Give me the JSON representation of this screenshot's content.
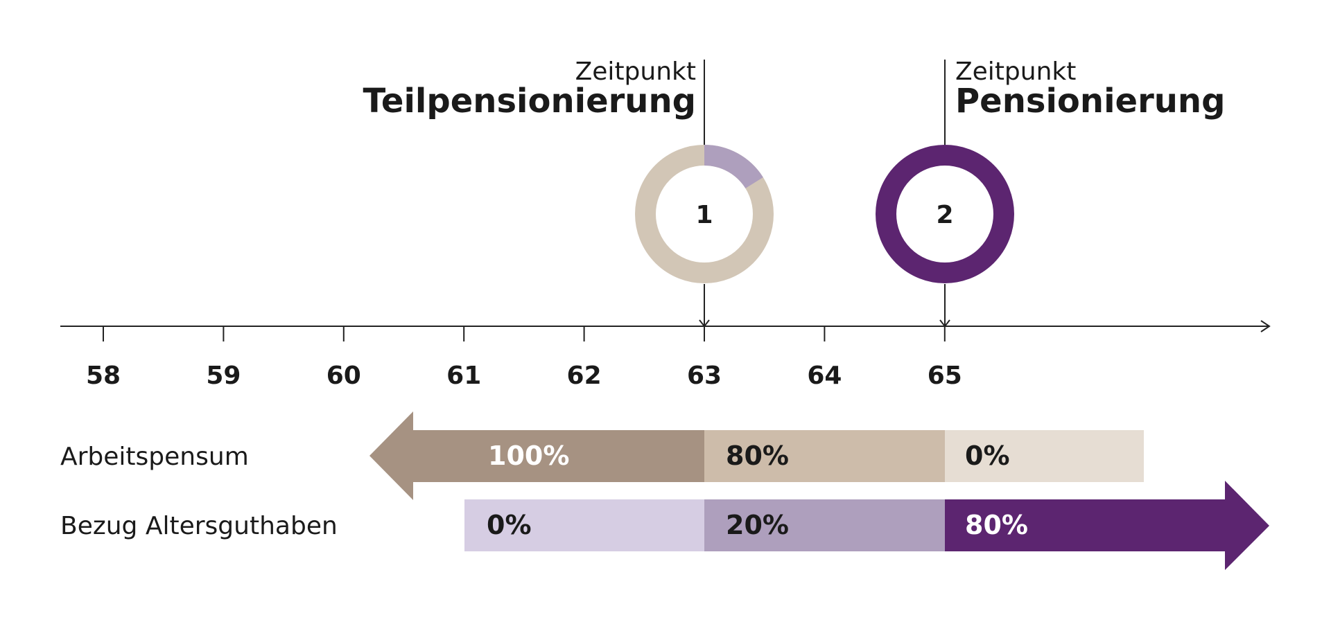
{
  "markers": [
    {
      "caption": "Zeitpunkt",
      "title": "Teilpensionierung",
      "number": "1"
    },
    {
      "caption": "Zeitpunkt",
      "title": "Pensionierung",
      "number": "2"
    }
  ],
  "axis": {
    "ticks": [
      "58",
      "59",
      "60",
      "61",
      "62",
      "63",
      "64",
      "65"
    ]
  },
  "rows": [
    {
      "label": "Arbeitspensum",
      "segments": [
        "100%",
        "80%",
        "0%"
      ]
    },
    {
      "label": "Bezug Altersguthaben",
      "segments": [
        "0%",
        "20%",
        "80%"
      ]
    }
  ]
}
